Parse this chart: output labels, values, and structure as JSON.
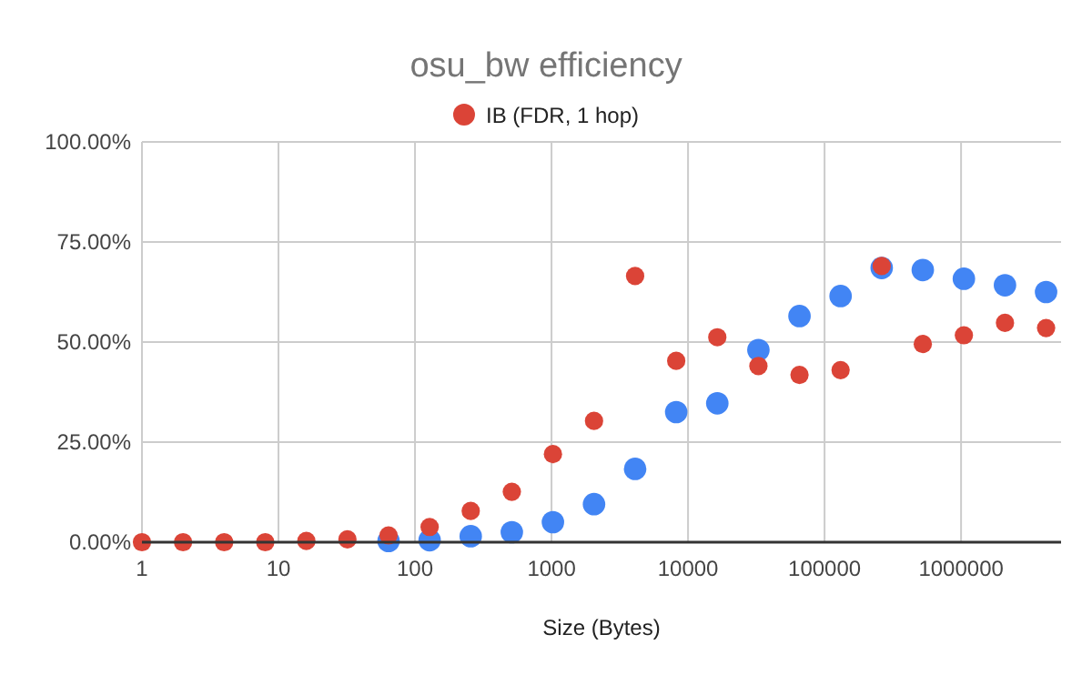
{
  "chart_data": {
    "type": "scatter",
    "title": "osu_bw efficiency",
    "xlabel": "Size (Bytes)",
    "log": "x",
    "grid": true,
    "legend": "top",
    "marker": "circle",
    "x": [
      1,
      2,
      4,
      8,
      16,
      32,
      64,
      128,
      256,
      512,
      1024,
      2048,
      4096,
      8192,
      16384,
      32768,
      65536,
      131072,
      262144,
      524288,
      1048576,
      2097152,
      4194304
    ],
    "xlim": [
      1,
      5400000
    ],
    "xticks": [
      1,
      10,
      100,
      1000,
      10000,
      100000,
      1000000
    ],
    "ylim": [
      0,
      100
    ],
    "yticks": [
      {
        "value": 0,
        "label": "0.00%"
      },
      {
        "value": 25,
        "label": "25.00%"
      },
      {
        "value": 50,
        "label": "50.00%"
      },
      {
        "value": 75,
        "label": "75.00%"
      },
      {
        "value": 100,
        "label": "100.00%"
      }
    ],
    "series": [
      {
        "color": "#4285f4",
        "values": [
          null,
          null,
          null,
          null,
          null,
          null,
          0.3,
          0.5,
          1.5,
          2.5,
          5,
          9.5,
          18.3,
          32.5,
          34.7,
          48,
          56.5,
          61.5,
          68.5,
          68,
          65.8,
          64.2,
          62.5
        ]
      },
      {
        "name": "IB (FDR, 1 hop)",
        "color": "#db4437",
        "values": [
          0,
          0,
          0,
          0,
          0.3,
          0.7,
          1.7,
          3.8,
          7.8,
          12.6,
          22,
          30.3,
          66.5,
          45.3,
          51.2,
          44,
          41.8,
          43,
          69,
          49.5,
          51.7,
          54.8,
          53.5
        ]
      }
    ]
  }
}
